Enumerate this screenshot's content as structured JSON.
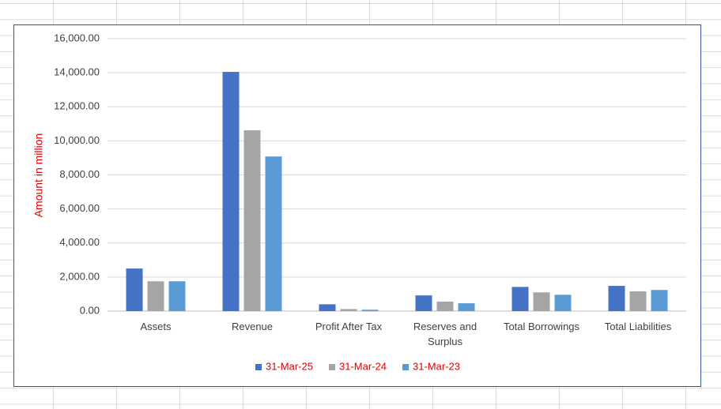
{
  "chart_data": {
    "type": "bar",
    "y_label": "Amount in million",
    "categories": [
      "Assets",
      "Revenue",
      "Profit After Tax",
      "Reserves and Surplus",
      "Total Borrowings",
      "Total Liabilities"
    ],
    "series": [
      {
        "name": "31-Mar-25",
        "color": "#4472c4",
        "values": [
          2500,
          14050,
          400,
          920,
          1420,
          1480
        ]
      },
      {
        "name": "31-Mar-24",
        "color": "#a5a5a5",
        "values": [
          1750,
          10620,
          120,
          560,
          1100,
          1160
        ]
      },
      {
        "name": "31-Mar-23",
        "color": "#5b9bd5",
        "values": [
          1750,
          9080,
          80,
          460,
          960,
          1240
        ]
      }
    ],
    "ylim": [
      0,
      16000
    ],
    "yticks": [
      {
        "value": 0,
        "label": "0.00"
      },
      {
        "value": 2000,
        "label": "2,000.00"
      },
      {
        "value": 4000,
        "label": "4,000.00"
      },
      {
        "value": 6000,
        "label": "6,000.00"
      },
      {
        "value": 8000,
        "label": "8,000.00"
      },
      {
        "value": 10000,
        "label": "10,000.00"
      },
      {
        "value": 12000,
        "label": "12,000.00"
      },
      {
        "value": 14000,
        "label": "14,000.00"
      },
      {
        "value": 16000,
        "label": "16,000.00"
      }
    ],
    "grid": true,
    "legend": "bottom"
  }
}
